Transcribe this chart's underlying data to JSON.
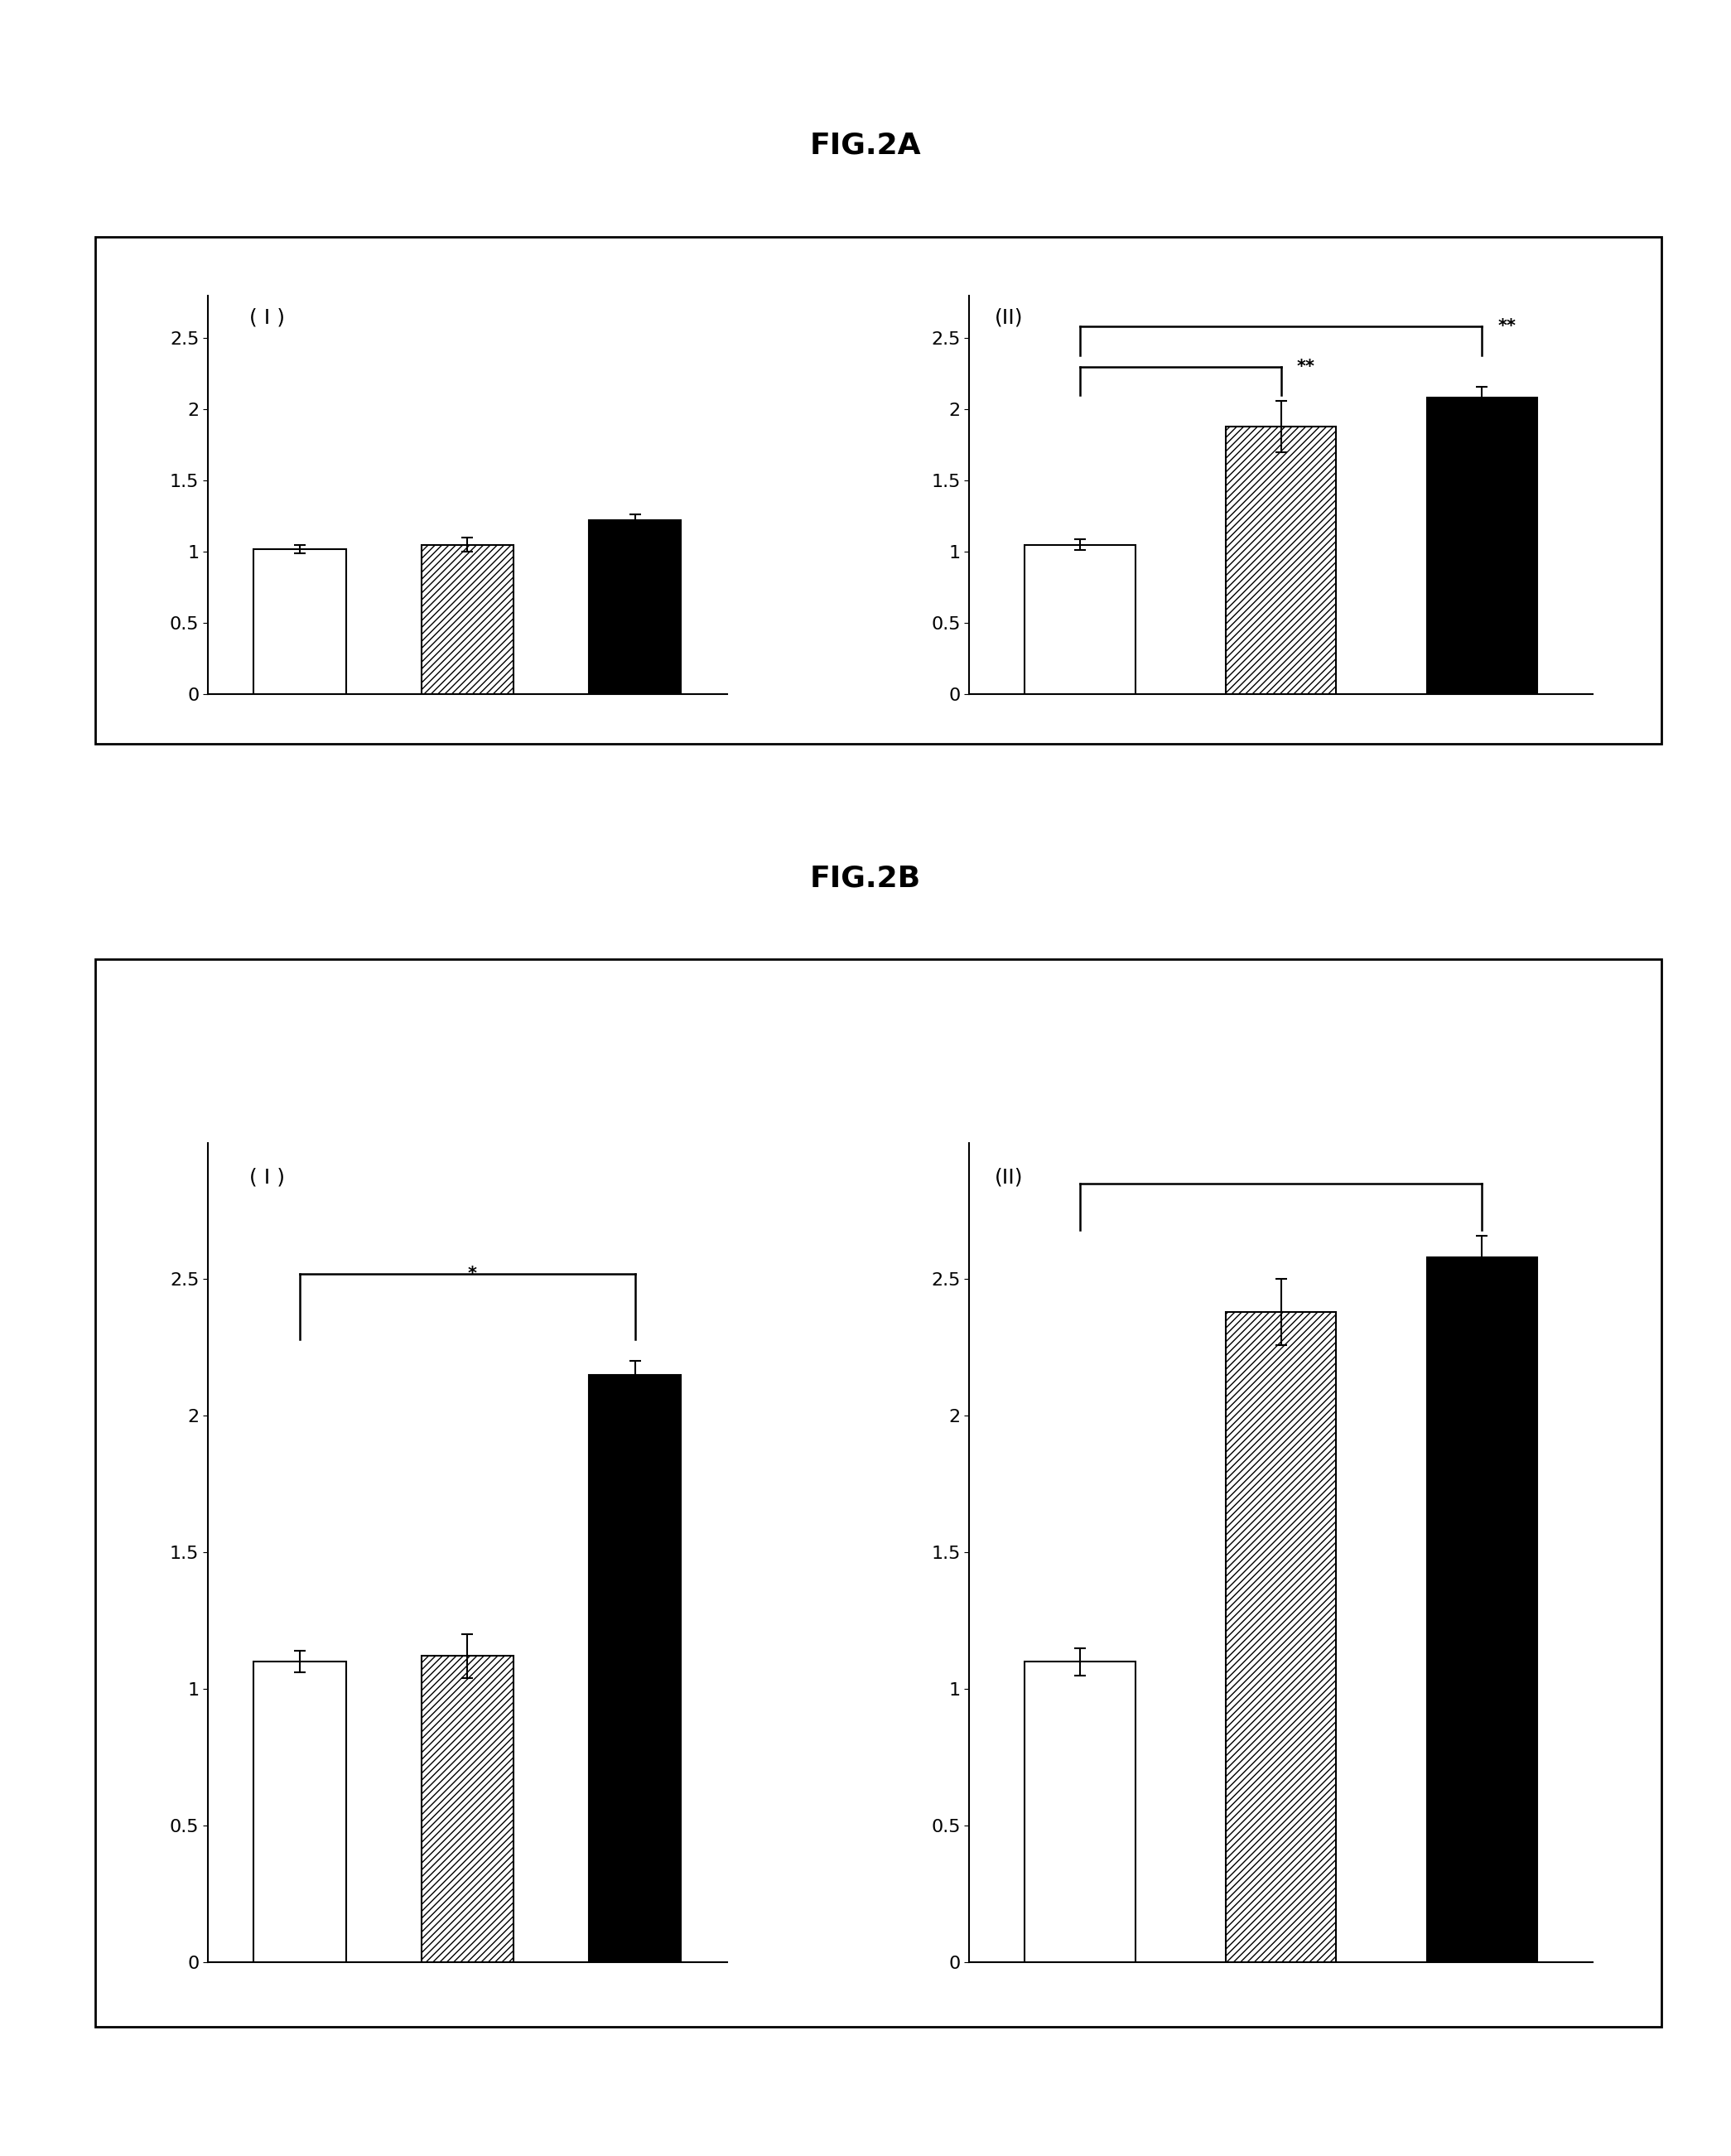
{
  "fig_title_A": "FIG.2A",
  "fig_title_B": "FIG.2B",
  "panel_label_I": "( I )",
  "panel_label_II": "(II)",
  "figA": {
    "panel_I": {
      "values": [
        1.02,
        1.05,
        1.22
      ],
      "errors": [
        0.03,
        0.05,
        0.04
      ],
      "ylim": [
        0,
        2.8
      ],
      "yticks": [
        0,
        0.5,
        1.0,
        1.5,
        2.0,
        2.5
      ],
      "ytick_labels": [
        "0",
        "0.5",
        "1",
        "1.5",
        "2",
        "2.5"
      ]
    },
    "panel_II": {
      "values": [
        1.05,
        1.88,
        2.08
      ],
      "errors": [
        0.04,
        0.18,
        0.08
      ],
      "ylim": [
        0,
        2.8
      ],
      "yticks": [
        0,
        0.5,
        1.0,
        1.5,
        2.0,
        2.5
      ],
      "ytick_labels": [
        "0",
        "0.5",
        "1",
        "1.5",
        "2",
        "2.5"
      ]
    }
  },
  "figB": {
    "panel_I": {
      "values": [
        1.1,
        1.12,
        2.15
      ],
      "errors": [
        0.04,
        0.08,
        0.05
      ],
      "ylim": [
        0,
        3.0
      ],
      "yticks": [
        0,
        0.5,
        1.0,
        1.5,
        2.0,
        2.5
      ],
      "ytick_labels": [
        "0",
        "0.5",
        "1",
        "1.5",
        "2",
        "2.5"
      ]
    },
    "panel_II": {
      "values": [
        1.1,
        2.38,
        2.58
      ],
      "errors": [
        0.05,
        0.12,
        0.08
      ],
      "ylim": [
        0,
        3.0
      ],
      "yticks": [
        0,
        0.5,
        1.0,
        1.5,
        2.0,
        2.5
      ],
      "ytick_labels": [
        "0",
        "0.5",
        "1",
        "1.5",
        "2",
        "2.5"
      ]
    }
  },
  "bar_width": 0.55,
  "title_fontsize": 26,
  "label_fontsize": 18,
  "tick_fontsize": 16,
  "sig_fontsize": 15
}
